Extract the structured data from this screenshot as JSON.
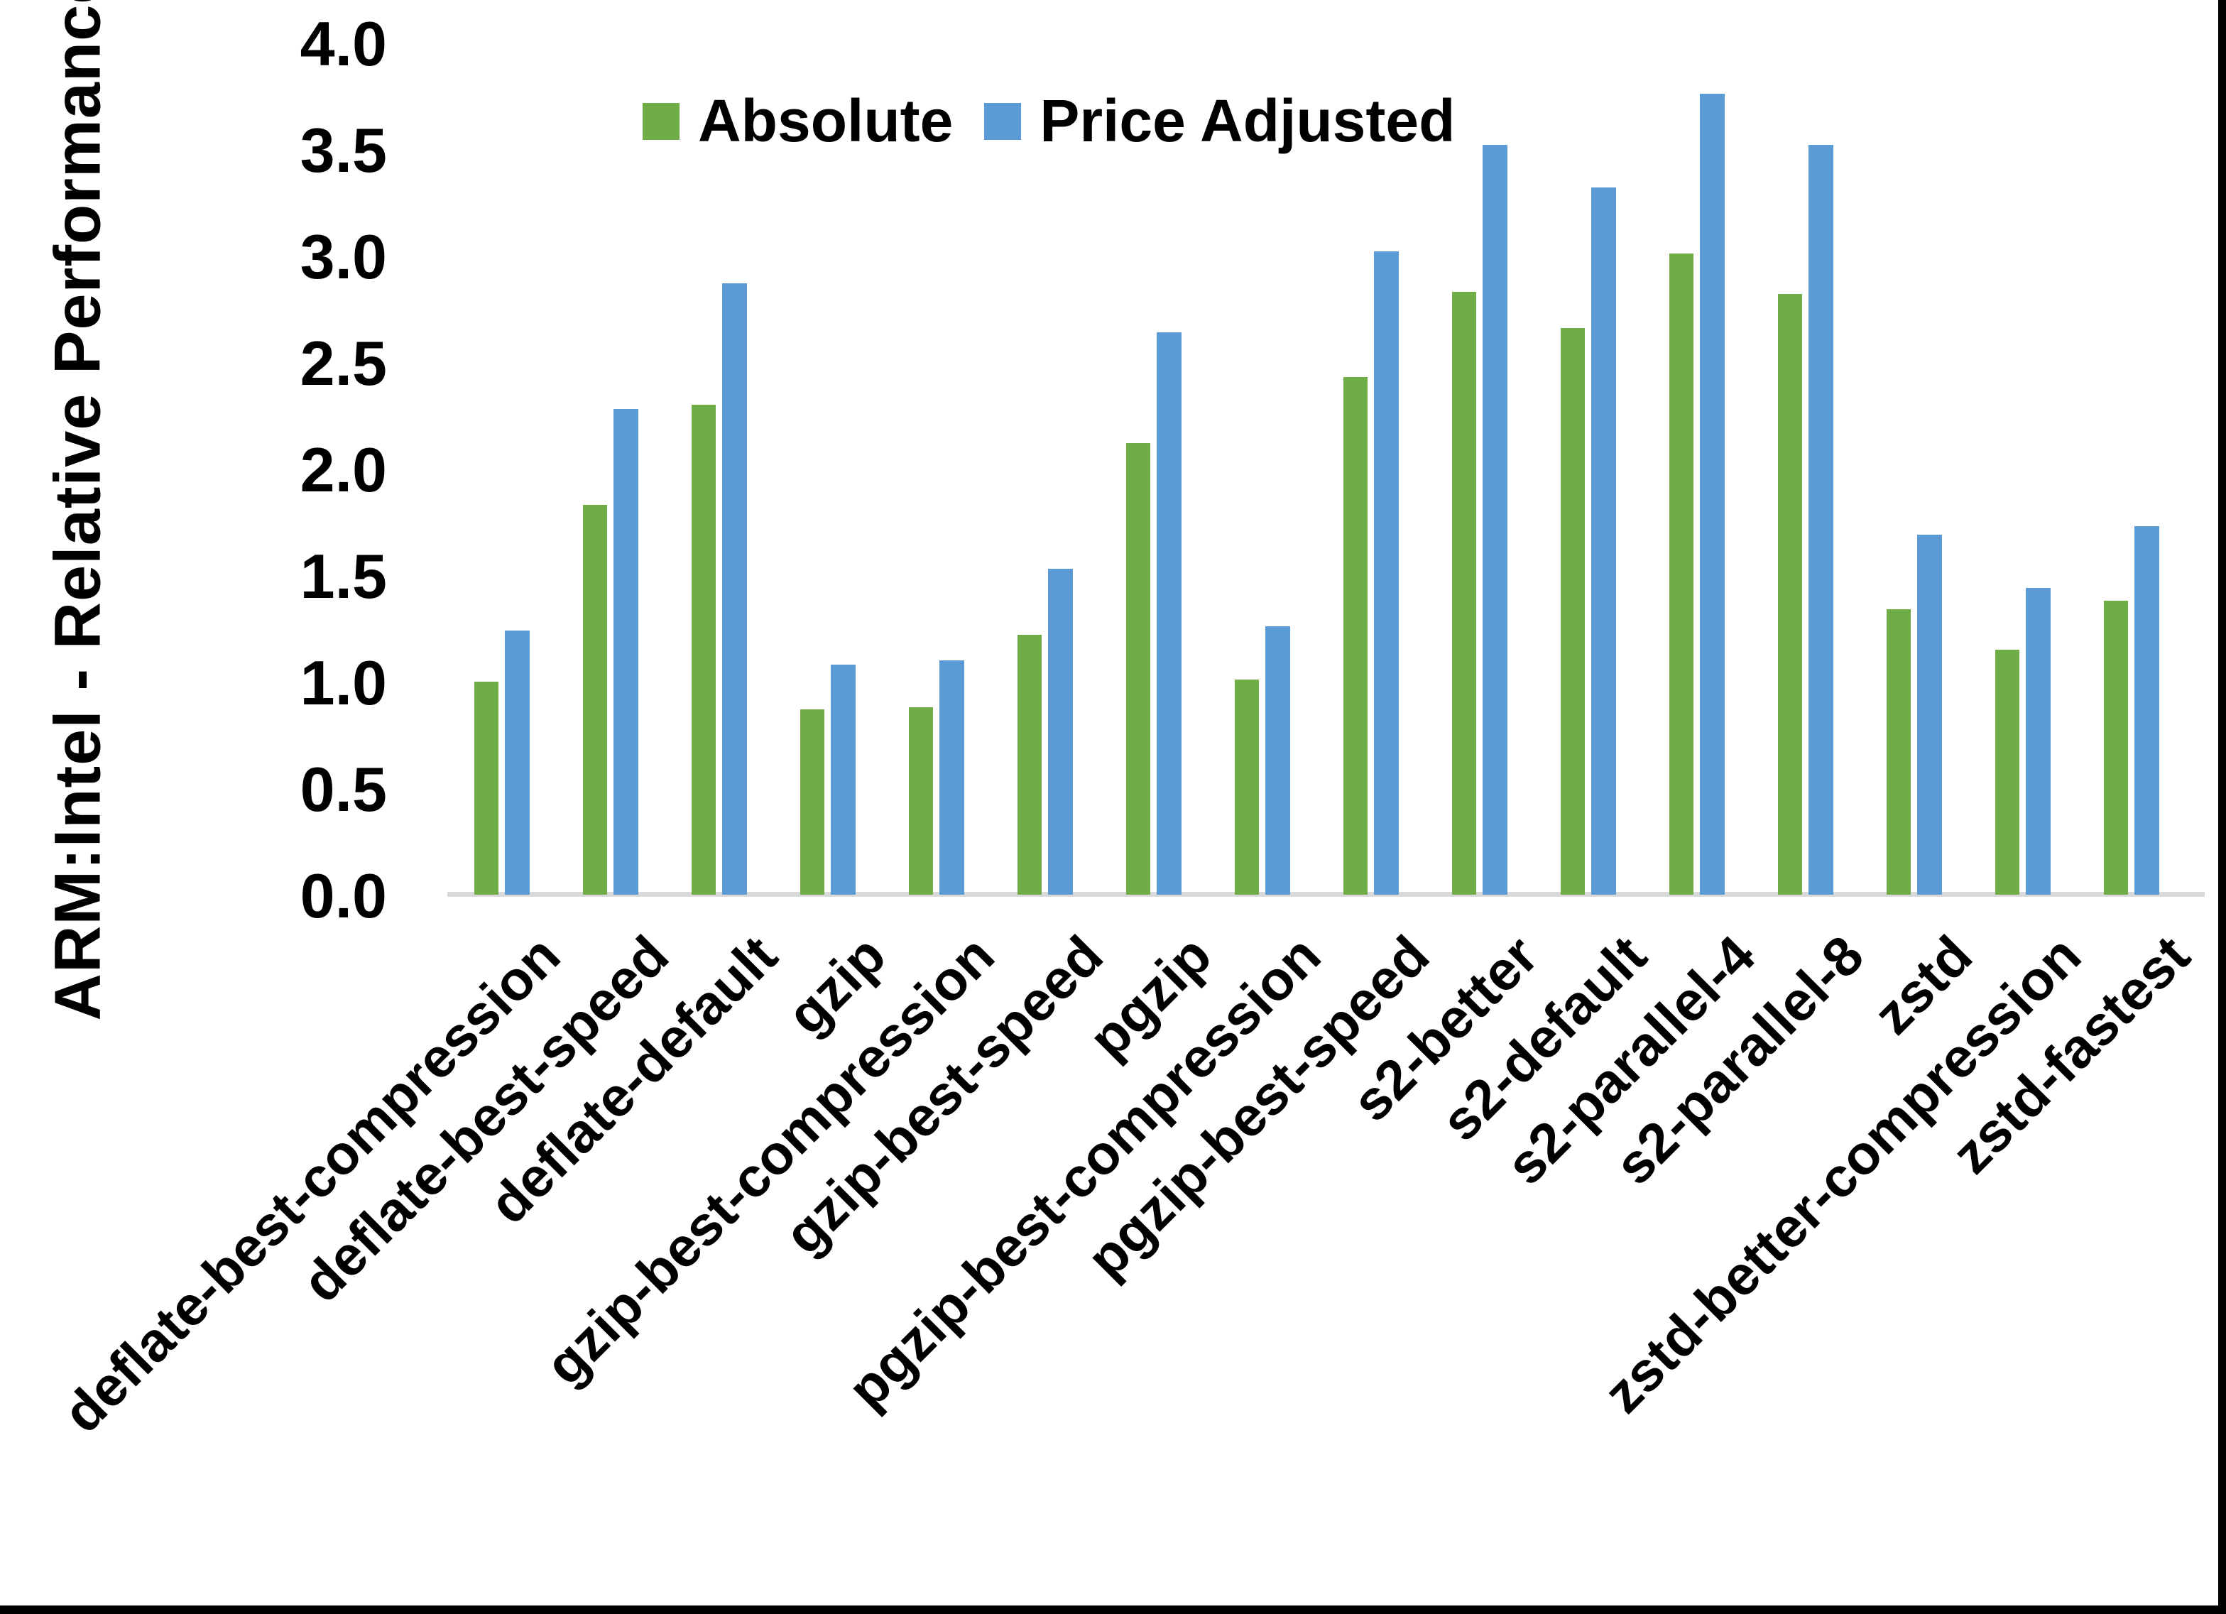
{
  "chart_data": {
    "type": "bar",
    "title": "",
    "ylabel": "ARM:Intel - Relative Performance",
    "xlabel": "",
    "ylim": [
      0.0,
      4.0
    ],
    "ytick_step": 0.5,
    "ytick_format_decimals": 1,
    "grid": false,
    "legend_position": "top-center",
    "categories": [
      "deflate-best-compression",
      "deflate-best-speed",
      "deflate-default",
      "gzip",
      "gzip-best-compression",
      "gzip-best-speed",
      "pgzip",
      "pgzip-best-compression",
      "pgzip-best-speed",
      "s2-better",
      "s2-default",
      "s2-parallel-4",
      "s2-parallel-8",
      "zstd",
      "zstd-better-compression",
      "zstd-fastest"
    ],
    "series": [
      {
        "name": "Absolute",
        "color": "#70AD47",
        "values": [
          1.0,
          1.83,
          2.3,
          0.87,
          0.88,
          1.22,
          2.12,
          1.01,
          2.43,
          2.83,
          2.66,
          3.01,
          2.82,
          1.34,
          1.15,
          1.38
        ]
      },
      {
        "name": "Price Adjusted",
        "color": "#5B9BD5",
        "values": [
          1.24,
          2.28,
          2.87,
          1.08,
          1.1,
          1.53,
          2.64,
          1.26,
          3.02,
          3.52,
          3.32,
          3.76,
          3.52,
          1.69,
          1.44,
          1.73
        ]
      }
    ],
    "axis_line_color": "#D9D9D9",
    "text_color": "#000000"
  }
}
